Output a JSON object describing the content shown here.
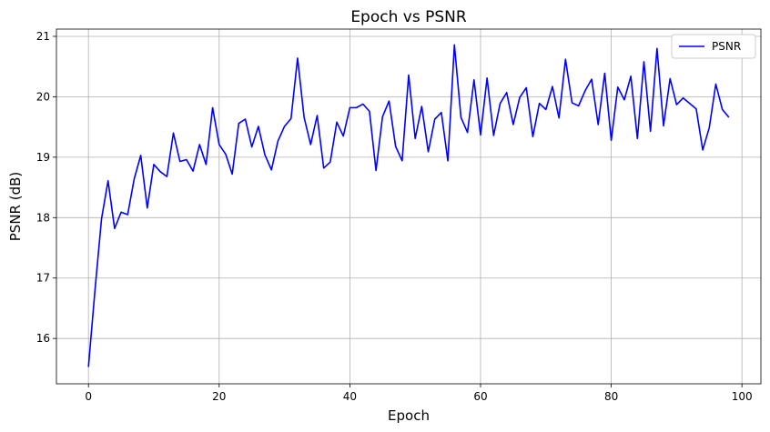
{
  "chart_data": {
    "type": "line",
    "title": "Epoch vs PSNR",
    "xlabel": "Epoch",
    "ylabel": "PSNR (dB)",
    "xlim": [
      -4.9,
      102.9
    ],
    "ylim": [
      15.25,
      21.12
    ],
    "x_ticks": [
      0,
      20,
      40,
      60,
      80,
      100
    ],
    "y_ticks": [
      16,
      17,
      18,
      19,
      20,
      21
    ],
    "grid": true,
    "legend_position": "top-right",
    "series": [
      {
        "name": "PSNR",
        "color": "#0000ff",
        "x": [
          0,
          1,
          2,
          3,
          4,
          5,
          6,
          7,
          8,
          9,
          10,
          11,
          12,
          13,
          14,
          15,
          16,
          17,
          18,
          19,
          20,
          21,
          22,
          23,
          24,
          25,
          26,
          27,
          28,
          29,
          30,
          31,
          32,
          33,
          34,
          35,
          36,
          37,
          38,
          39,
          40,
          41,
          42,
          43,
          44,
          45,
          46,
          47,
          48,
          49,
          50,
          51,
          52,
          53,
          54,
          55,
          56,
          57,
          58,
          59,
          60,
          61,
          62,
          63,
          64,
          65,
          66,
          67,
          68,
          69,
          70,
          71,
          72,
          73,
          74,
          75,
          76,
          77,
          78,
          79,
          80,
          81,
          82,
          83,
          84,
          85,
          86,
          87,
          88,
          89,
          90,
          91,
          92,
          93,
          94,
          95,
          96,
          97,
          98
        ],
        "values": [
          15.53,
          16.8,
          17.98,
          18.61,
          17.82,
          18.09,
          18.05,
          18.64,
          19.03,
          18.16,
          18.88,
          18.76,
          18.68,
          19.4,
          18.93,
          18.96,
          18.77,
          19.21,
          18.88,
          19.82,
          19.21,
          19.05,
          18.72,
          19.56,
          19.63,
          19.17,
          19.51,
          19.04,
          18.79,
          19.27,
          19.51,
          19.64,
          20.64,
          19.66,
          19.21,
          19.69,
          18.82,
          18.92,
          19.58,
          19.35,
          19.82,
          19.82,
          19.88,
          19.76,
          18.78,
          19.67,
          19.93,
          19.18,
          18.94,
          20.36,
          19.31,
          19.84,
          19.09,
          19.63,
          19.74,
          18.94,
          20.86,
          19.66,
          19.41,
          20.28,
          19.37,
          20.31,
          19.36,
          19.89,
          20.07,
          19.54,
          19.99,
          20.15,
          19.34,
          19.89,
          19.79,
          20.17,
          19.65,
          20.62,
          19.9,
          19.85,
          20.1,
          20.29,
          19.54,
          20.39,
          19.28,
          20.16,
          19.95,
          20.34,
          19.31,
          20.58,
          19.43,
          20.8,
          19.52,
          20.3,
          19.87,
          19.98,
          19.89,
          19.8,
          19.12,
          19.49,
          20.21,
          19.79,
          19.66
        ]
      }
    ]
  }
}
